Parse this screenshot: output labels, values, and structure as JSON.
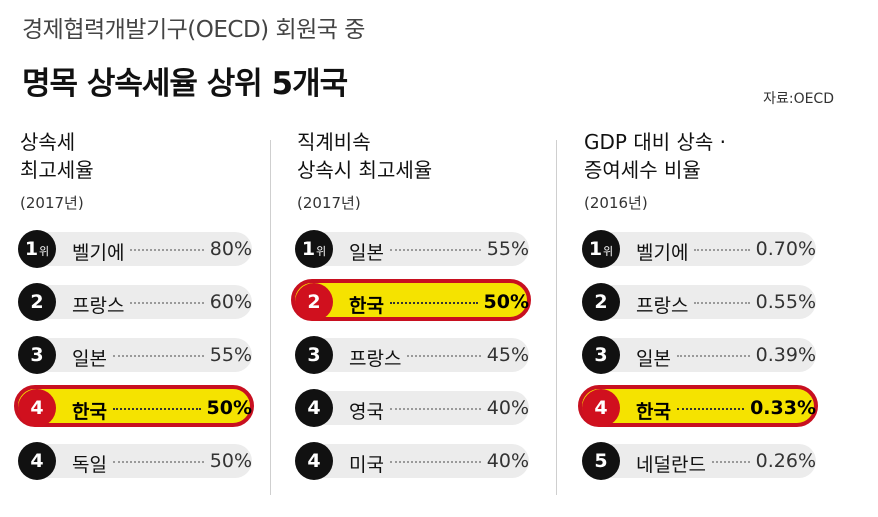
{
  "header": {
    "subtitle": "경제협력개발기구(OECD) 회원국 중",
    "title": "명목 상속세율 상위 5개국",
    "source": "자료:OECD"
  },
  "colors": {
    "highlight_fill": "#f5e300",
    "highlight_border": "#c81020",
    "rank_circle": "#111111",
    "rank_circle_highlight": "#d0101e",
    "pill": "#ececec"
  },
  "chart_data": [
    {
      "type": "table",
      "title_line1": "상속세",
      "title_line2": "최고세율",
      "year": "(2017년)",
      "rows": [
        {
          "rank": "1",
          "rank_suffix": "위",
          "country": "벨기에",
          "value": "80%",
          "highlight": false
        },
        {
          "rank": "2",
          "rank_suffix": "",
          "country": "프랑스",
          "value": "60%",
          "highlight": false
        },
        {
          "rank": "3",
          "rank_suffix": "",
          "country": "일본",
          "value": "55%",
          "highlight": false
        },
        {
          "rank": "4",
          "rank_suffix": "",
          "country": "한국",
          "value": "50%",
          "highlight": true
        },
        {
          "rank": "4",
          "rank_suffix": "",
          "country": "독일",
          "value": "50%",
          "highlight": false
        }
      ]
    },
    {
      "type": "table",
      "title_line1": "직계비속",
      "title_line2": "상속시 최고세율",
      "year": "(2017년)",
      "rows": [
        {
          "rank": "1",
          "rank_suffix": "위",
          "country": "일본",
          "value": "55%",
          "highlight": false
        },
        {
          "rank": "2",
          "rank_suffix": "",
          "country": "한국",
          "value": "50%",
          "highlight": true
        },
        {
          "rank": "3",
          "rank_suffix": "",
          "country": "프랑스",
          "value": "45%",
          "highlight": false
        },
        {
          "rank": "4",
          "rank_suffix": "",
          "country": "영국",
          "value": "40%",
          "highlight": false
        },
        {
          "rank": "4",
          "rank_suffix": "",
          "country": "미국",
          "value": "40%",
          "highlight": false
        }
      ]
    },
    {
      "type": "table",
      "title_line1": "GDP 대비 상속 ·",
      "title_line2": "증여세수 비율",
      "year": "(2016년)",
      "rows": [
        {
          "rank": "1",
          "rank_suffix": "위",
          "country": "벨기에",
          "value": "0.70%",
          "highlight": false
        },
        {
          "rank": "2",
          "rank_suffix": "",
          "country": "프랑스",
          "value": "0.55%",
          "highlight": false
        },
        {
          "rank": "3",
          "rank_suffix": "",
          "country": "일본",
          "value": "0.39%",
          "highlight": false
        },
        {
          "rank": "4",
          "rank_suffix": "",
          "country": "한국",
          "value": "0.33%",
          "highlight": true
        },
        {
          "rank": "5",
          "rank_suffix": "",
          "country": "네덜란드",
          "value": "0.26%",
          "highlight": false
        }
      ]
    }
  ]
}
